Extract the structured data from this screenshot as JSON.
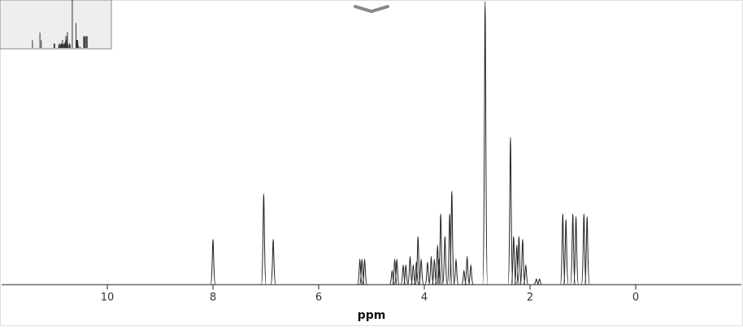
{
  "chart_data": {
    "type": "spectrum",
    "x_label": "ppm",
    "xlim": [
      12,
      -2
    ],
    "xticks": [
      10,
      8,
      6,
      4,
      2,
      0
    ],
    "ylim": [
      0,
      100
    ],
    "color": "#222222",
    "x": [
      8.0,
      7.04,
      6.86,
      5.22,
      5.18,
      5.13,
      4.61,
      4.56,
      4.52,
      4.4,
      4.35,
      4.27,
      4.21,
      4.15,
      4.12,
      4.06,
      3.94,
      3.87,
      3.81,
      3.75,
      3.72,
      3.69,
      3.61,
      3.52,
      3.48,
      3.4,
      3.25,
      3.19,
      3.12,
      2.85,
      2.37,
      2.31,
      2.25,
      2.21,
      2.14,
      2.08,
      1.88,
      1.82,
      1.38,
      1.32,
      1.19,
      1.13,
      0.98,
      0.92
    ],
    "values": [
      16,
      32,
      16,
      9,
      9,
      9,
      5,
      9,
      9,
      7,
      7,
      10,
      7,
      8,
      17,
      9,
      8,
      10,
      9,
      14,
      9,
      25,
      17,
      25,
      33,
      9,
      5,
      10,
      7,
      100,
      52,
      17,
      14,
      17,
      16,
      7,
      2,
      2,
      25,
      23,
      25,
      24,
      25,
      24
    ]
  }
}
